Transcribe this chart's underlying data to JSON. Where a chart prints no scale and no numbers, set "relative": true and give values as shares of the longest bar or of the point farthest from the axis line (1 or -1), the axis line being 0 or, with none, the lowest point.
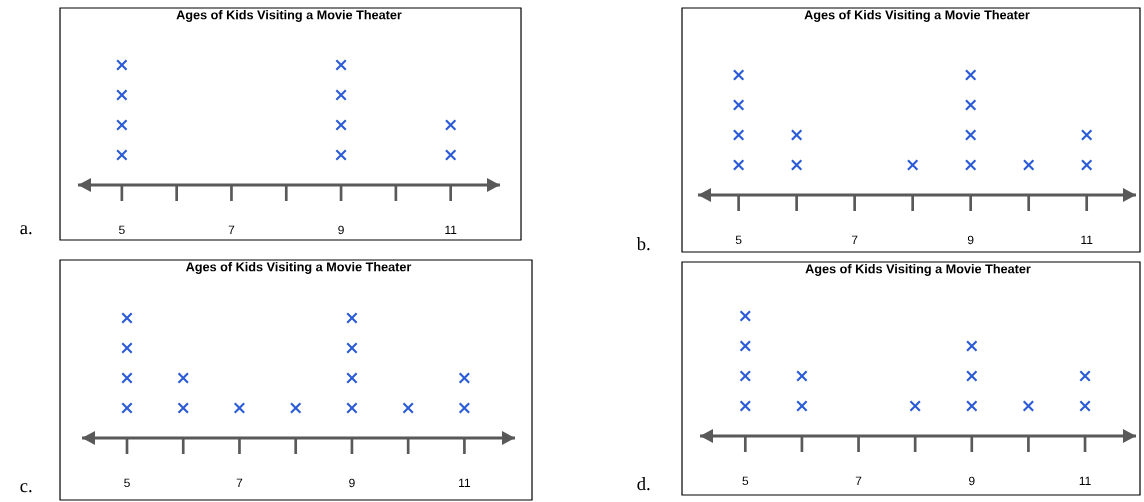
{
  "chart_data": [
    {
      "type": "scatter",
      "title": "Ages of Kids Visiting a Movie Theater",
      "x": [
        5,
        5,
        5,
        5,
        9,
        9,
        9,
        9,
        11,
        11
      ],
      "values": [
        0.25,
        0.5,
        0.75,
        1,
        0.25,
        0.5,
        0.75,
        1,
        0.25,
        0.5
      ],
      "relative": true,
      "color": "#2b5bd7",
      "marker": "cross",
      "xlim": [
        4.2,
        11.9
      ],
      "xticks": [
        5,
        {
          "value": 6,
          "label": null
        },
        7,
        {
          "value": 8,
          "label": null
        },
        9,
        {
          "value": 10,
          "label": null
        },
        11
      ],
      "tick_labels": "x",
      "annotations": [
        "a."
      ]
    },
    {
      "type": "scatter",
      "title": "Ages of Kids Visiting a Movie Theater",
      "x": [
        5,
        5,
        5,
        5,
        6,
        6,
        8,
        9,
        9,
        9,
        9,
        10,
        11,
        11
      ],
      "values": [
        0.25,
        0.5,
        0.75,
        1,
        0.25,
        0.5,
        0.25,
        0.25,
        0.5,
        0.75,
        1,
        0.25,
        0.25,
        0.5
      ],
      "relative": true,
      "color": "#2b5bd7",
      "marker": "cross",
      "xlim": [
        4.3,
        11.85
      ],
      "xticks": [
        5,
        {
          "value": 6,
          "label": null
        },
        7,
        {
          "value": 8,
          "label": null
        },
        9,
        {
          "value": 10,
          "label": null
        },
        11
      ],
      "tick_labels": "x",
      "annotations": [
        "b."
      ]
    },
    {
      "type": "scatter",
      "title": "Ages of Kids Visiting a Movie Theater",
      "x": [
        5,
        5,
        5,
        5,
        6,
        6,
        7,
        8,
        9,
        9,
        9,
        9,
        10,
        11,
        11
      ],
      "values": [
        0.25,
        0.5,
        0.75,
        1,
        0.25,
        0.5,
        0.25,
        0.25,
        0.25,
        0.5,
        0.75,
        1,
        0.25,
        0.25,
        0.5
      ],
      "relative": true,
      "color": "#2b5bd7",
      "marker": "cross",
      "xlim": [
        4.2,
        11.9
      ],
      "xticks": [
        5,
        {
          "value": 6,
          "label": null
        },
        7,
        {
          "value": 8,
          "label": null
        },
        9,
        {
          "value": 10,
          "label": null
        },
        11
      ],
      "tick_labels": "x",
      "annotations": [
        "c."
      ]
    },
    {
      "type": "scatter",
      "title": "Ages of Kids Visiting a Movie Theater",
      "x": [
        5,
        5,
        5,
        5,
        6,
        6,
        8,
        9,
        9,
        9,
        10,
        11,
        11
      ],
      "values": [
        0.25,
        0.5,
        0.75,
        1,
        0.25,
        0.5,
        0.25,
        0.25,
        0.5,
        0.75,
        0.25,
        0.25,
        0.5
      ],
      "relative": true,
      "color": "#2b5bd7",
      "marker": "cross",
      "xlim": [
        4.2,
        11.9
      ],
      "xticks": [
        5,
        {
          "value": 6,
          "label": null
        },
        7,
        {
          "value": 8,
          "label": null
        },
        9,
        {
          "value": 10,
          "label": null
        },
        11
      ],
      "tick_labels": "x",
      "annotations": [
        "d."
      ]
    }
  ]
}
